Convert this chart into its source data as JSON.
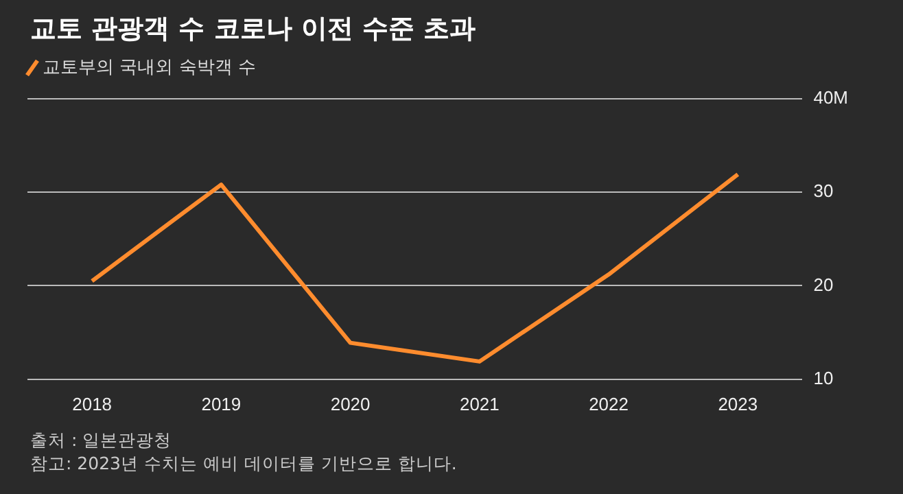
{
  "chart_data": {
    "type": "line",
    "title": "교토 관광객 수 코로나 이전 수준 초과",
    "categories": [
      "2018",
      "2019",
      "2020",
      "2021",
      "2022",
      "2023"
    ],
    "series": [
      {
        "name": "교토부의 국내외 숙박객 수",
        "color": "#ff8c2e",
        "values": [
          20.5,
          30.8,
          13.9,
          11.9,
          21.2,
          31.9
        ]
      }
    ],
    "ylim": [
      10,
      40
    ],
    "yticks": [
      10,
      20,
      30,
      {
        "value": 40,
        "label": "40M"
      }
    ],
    "grid": "y",
    "legend": "top left",
    "marker": "none",
    "annotations": [
      "출처 : 일본관광청",
      "참고: 2023년 수치는 예비 데이터를 기반으로 합니다."
    ]
  }
}
